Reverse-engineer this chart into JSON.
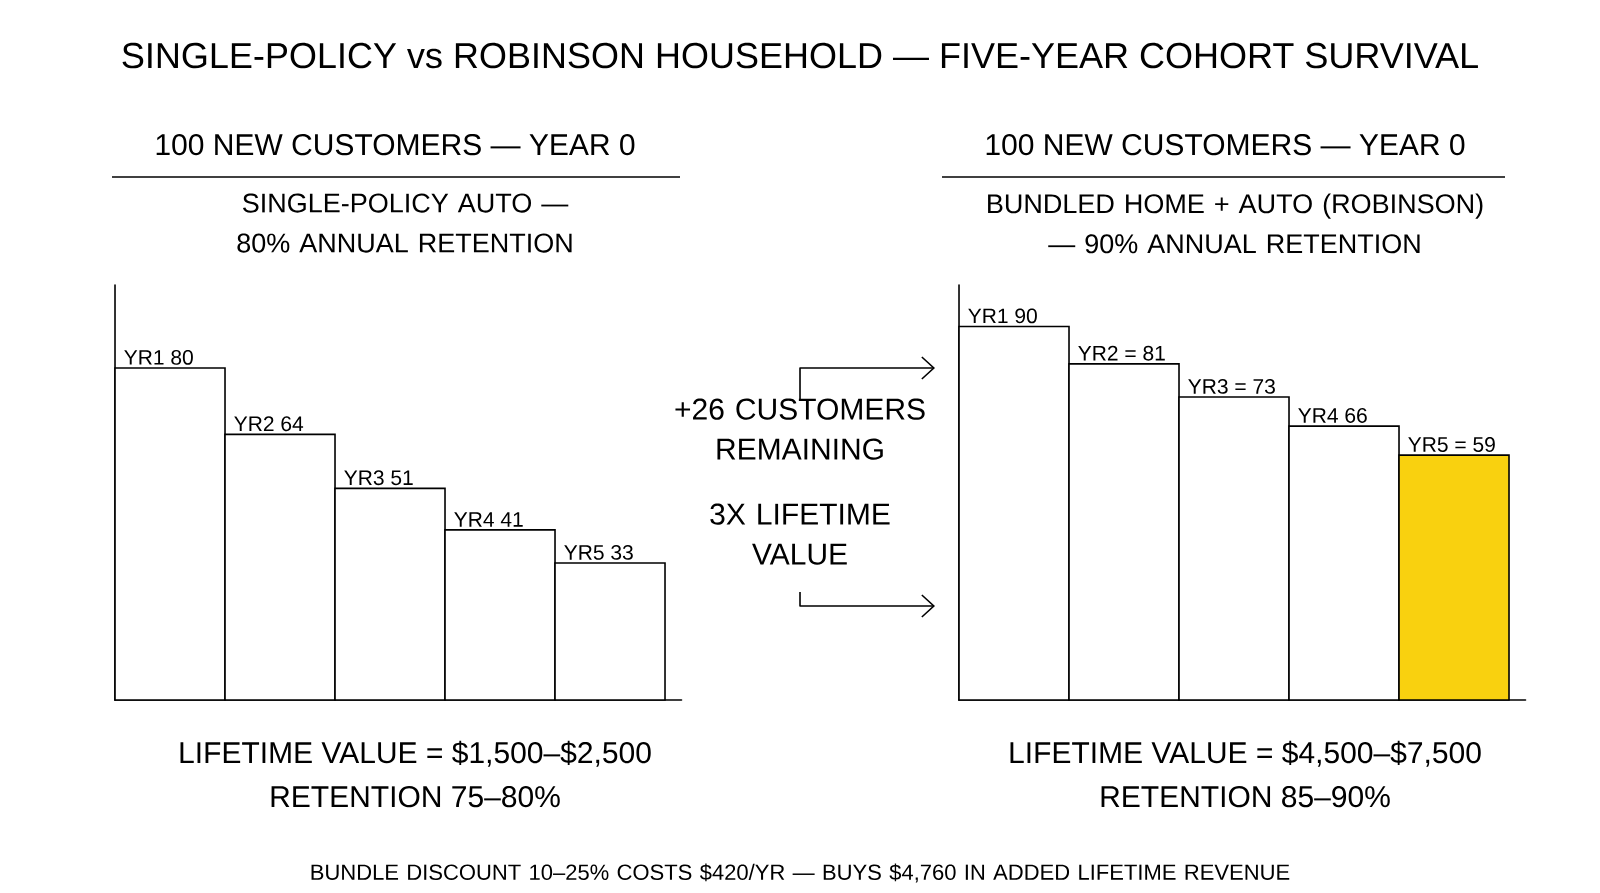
{
  "chart_data": [
    {
      "type": "bar",
      "title": "100 NEW CUSTOMERS — YEAR 0",
      "subtitle": "SINGLE-POLICY AUTO — 80% ANNUAL RETENTION",
      "categories": [
        null,
        null,
        null,
        null,
        null
      ],
      "values": [
        80,
        64,
        51,
        41,
        33
      ],
      "colors": [
        "#ffffff",
        "#ffffff",
        "#ffffff",
        "#ffffff",
        "#ffffff"
      ],
      "value_labels": [
        "YR1 80",
        "YR2 64",
        "YR3 51",
        "YR4 41",
        "YR5 33"
      ],
      "ylim": [
        0,
        100
      ],
      "annotations": [
        "LIFETIME VALUE = $1,500–$2,500",
        "RETENTION 75–80%"
      ]
    },
    {
      "type": "bar",
      "title": "100 NEW CUSTOMERS — YEAR 0",
      "subtitle": "BUNDLED HOME + AUTO (ROBINSON) — 90% ANNUAL RETENTION",
      "categories": [
        null,
        null,
        null,
        null,
        null
      ],
      "values": [
        90,
        81,
        73,
        66,
        59
      ],
      "colors": [
        "#ffffff",
        "#ffffff",
        "#ffffff",
        "#ffffff",
        "#f9d10f"
      ],
      "value_labels": [
        "YR1 90",
        "YR2 = 81",
        "YR3 = 73",
        "YR4 66",
        "YR5 = 59"
      ],
      "ylim": [
        0,
        100
      ],
      "annotations": [
        "LIFETIME VALUE = $4,500–$7,500",
        "RETENTION 85–90%"
      ]
    },
    {
      "type": "other",
      "title": "SINGLE-POLICY vs ROBINSON HOUSEHOLD — FIVE-YEAR COHORT SURVIVAL",
      "annotations": [
        "+26 CUSTOMERS REMAINING",
        "3X LIFETIME VALUE",
        "BUNDLE DISCOUNT 10–25% COSTS $420/YR — BUYS $4,760 IN ADDED LIFETIME REVENUE"
      ]
    }
  ]
}
